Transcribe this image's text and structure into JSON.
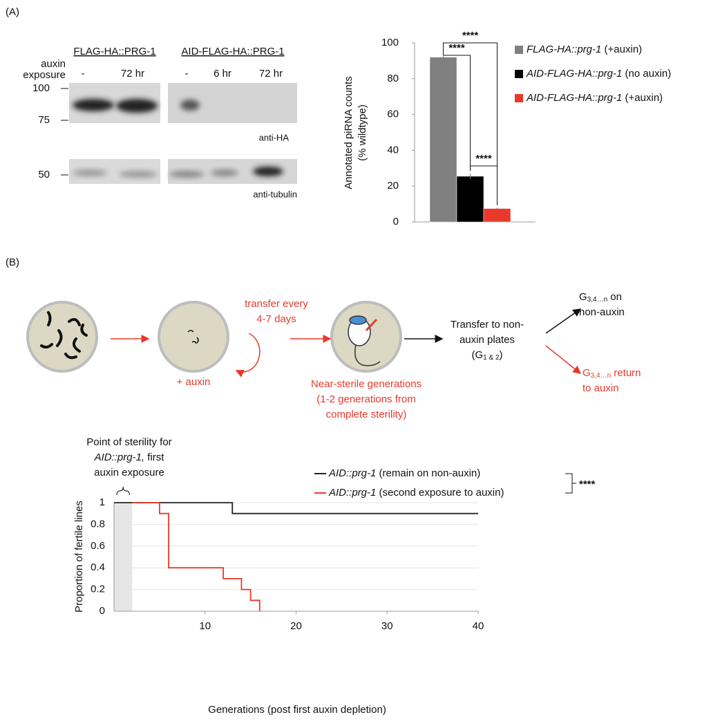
{
  "panel_labels": [
    "(A)",
    "(B)"
  ],
  "western_blot": {
    "group_labels": [
      "FLAG-HA::PRG-1",
      "AID-FLAG-HA::PRG-1"
    ],
    "row_label": [
      "auxin",
      "exposure"
    ],
    "lane_labels": [
      "-",
      "72 hr",
      "-",
      "6 hr",
      "72 hr"
    ],
    "mw_markers_top": [
      100,
      75
    ],
    "mw_markers_bottom": [
      50
    ],
    "antibodies": [
      "anti-HA",
      "anti-tubulin"
    ]
  },
  "diagram": {
    "transfer_label": [
      "transfer every",
      "4-7 days"
    ],
    "auxin_label": "+ auxin",
    "near_sterile": [
      "Near-sterile generations",
      "(1-2 generations from",
      "complete sterility)"
    ],
    "transfer_non_auxin": [
      "Transfer to non-",
      "auxin plates"
    ],
    "transfer_generations": [
      "(G",
      "1 & 2",
      ")"
    ],
    "stay": [
      "G",
      "3,4…n",
      " on"
    ],
    "stay_line2": "non-auxin",
    "return": [
      "G",
      "3,4…n",
      " return"
    ],
    "return_line2": "to auxin"
  },
  "chart_data": [
    {
      "type": "bar",
      "ylabel": [
        "Annotated piRNA counts",
        "(% wildtype)"
      ],
      "ylim": [
        0,
        100
      ],
      "yticks": [
        0,
        20,
        40,
        60,
        80,
        100
      ],
      "series": [
        {
          "name": "FLAG-HA::prg-1 (+auxin)",
          "color": "#808080",
          "values": [
            92
          ],
          "errors": [
            0.5
          ]
        },
        {
          "name": "AID-FLAG-HA::prg-1 (no auxin)",
          "color": "#000000",
          "values": [
            25.5
          ],
          "errors": [
            1.5
          ]
        },
        {
          "name": "AID-FLAG-HA::prg-1 (+auxin)",
          "color": "#e8392a",
          "values": [
            7.5
          ],
          "errors": [
            0.3
          ]
        }
      ],
      "significance": [
        "****",
        "****",
        "****"
      ]
    },
    {
      "type": "step",
      "xlabel": "Generations (post first auxin depletion)",
      "ylabel": "Proportion of fertile lines",
      "xlim": [
        0,
        40
      ],
      "xticks": [
        10,
        20,
        30,
        40
      ],
      "ylim": [
        0,
        1
      ],
      "yticks": [
        0,
        0.2,
        0.4,
        0.6,
        0.8,
        1
      ],
      "grid": true,
      "shaded_x": [
        0,
        2
      ],
      "annotation": [
        "Point of sterility for",
        "AID::prg-1, first",
        "auxin exposure"
      ],
      "series": [
        {
          "name": "AID::prg-1 (remain on non-auxin)",
          "color": "#222222",
          "x": [
            0,
            13,
            13,
            40
          ],
          "values": [
            1,
            1,
            0.9,
            0.9
          ]
        },
        {
          "name": "AID::prg-1 (second exposure to auxin)",
          "color": "#e8392a",
          "x": [
            2,
            5,
            5,
            6,
            6,
            12,
            12,
            14,
            14,
            15,
            15,
            16,
            16
          ],
          "values": [
            1,
            1,
            0.9,
            0.9,
            0.4,
            0.4,
            0.3,
            0.3,
            0.2,
            0.2,
            0.1,
            0.1,
            0
          ]
        }
      ],
      "significance": "****"
    }
  ]
}
